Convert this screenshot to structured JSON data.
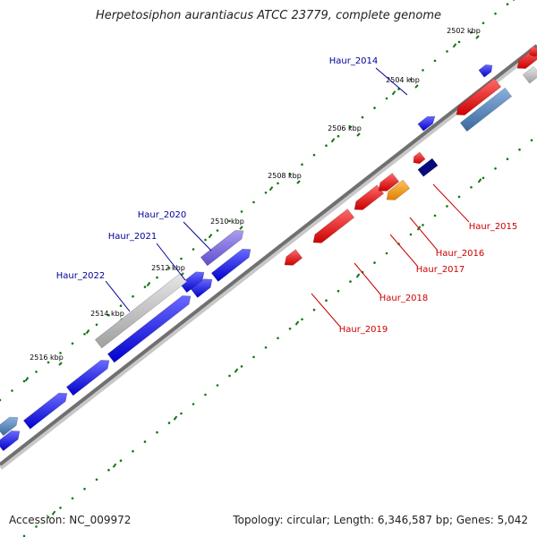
{
  "title": "Herpetosiphon aurantiacus ATCC 23779, complete genome",
  "footer": {
    "accession": "Accession: NC_009972",
    "stats": "Topology: circular; Length: 6,346,587 bp; Genes: 5,042"
  },
  "ticks": [
    "2502 kbp",
    "2504 kbp",
    "2506 kbp",
    "2508 kbp",
    "2510 kbp",
    "2512 kbp",
    "2514 kbp",
    "2516 kbp"
  ],
  "gene_labels": [
    "Haur_2014",
    "Haur_2015",
    "Haur_2016",
    "Haur_2017",
    "Haur_2018",
    "Haur_2019",
    "Haur_2020",
    "Haur_2021",
    "Haur_2022"
  ],
  "colors": {
    "backbone": "#7a7a7a",
    "forward": "#0a0aee",
    "reverse": "#ee0a0a",
    "pseudo": "#b4b4b4",
    "steel": "#4a7ab0",
    "orange": "#ff9900",
    "navy": "#0a0a80",
    "violet": "#7766dd",
    "dots": "#117711",
    "label_blue": "#000099",
    "label_red": "#cc0000"
  }
}
